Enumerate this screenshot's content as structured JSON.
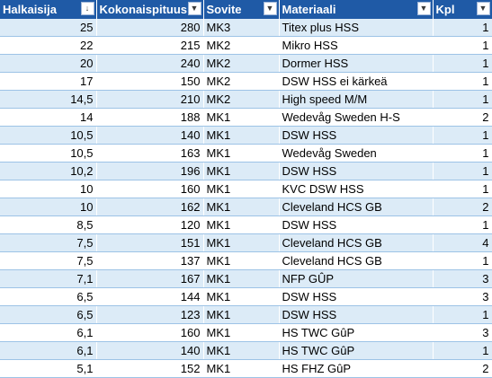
{
  "headers": [
    {
      "label": "Halkaisija",
      "filter_icon": "sort-descending-icon",
      "filter_glyph": "↓"
    },
    {
      "label": "Kokonaispituus",
      "filter_icon": "filter-dropdown-icon",
      "filter_glyph": "▼"
    },
    {
      "label": "Sovite",
      "filter_icon": "filter-dropdown-icon",
      "filter_glyph": "▼"
    },
    {
      "label": "Materiaali",
      "filter_icon": "filter-dropdown-icon",
      "filter_glyph": "▼"
    },
    {
      "label": "Kpl",
      "filter_icon": "filter-dropdown-icon",
      "filter_glyph": "▼"
    }
  ],
  "rows": [
    [
      "25",
      "280",
      "MK3",
      "Titex plus HSS",
      "1"
    ],
    [
      "22",
      "215",
      "MK2",
      "Mikro HSS",
      "1"
    ],
    [
      "20",
      "240",
      "MK2",
      "Dormer HSS",
      "1"
    ],
    [
      "17",
      "150",
      "MK2",
      "DSW HSS ei kärkeä",
      "1"
    ],
    [
      "14,5",
      "210",
      "MK2",
      "High speed M/M",
      "1"
    ],
    [
      "14",
      "188",
      "MK1",
      "Wedevåg Sweden H-S",
      "2"
    ],
    [
      "10,5",
      "140",
      "MK1",
      "DSW HSS",
      "1"
    ],
    [
      "10,5",
      "163",
      "MK1",
      "Wedevåg Sweden",
      "1"
    ],
    [
      "10,2",
      "196",
      "MK1",
      "DSW HSS",
      "1"
    ],
    [
      "10",
      "160",
      "MK1",
      "KVC DSW HSS",
      "1"
    ],
    [
      "10",
      "162",
      "MK1",
      "Cleveland HCS GB",
      "2"
    ],
    [
      "8,5",
      "120",
      "MK1",
      "DSW HSS",
      "1"
    ],
    [
      "7,5",
      "151",
      "MK1",
      "Cleveland HCS GB",
      "4"
    ],
    [
      "7,5",
      "137",
      "MK1",
      "Cleveland HCS GB",
      "1"
    ],
    [
      "7,1",
      "167",
      "MK1",
      "NFP GÛP",
      "3"
    ],
    [
      "6,5",
      "144",
      "MK1",
      "DSW HSS",
      "3"
    ],
    [
      "6,5",
      "123",
      "MK1",
      "DSW HSS",
      "1"
    ],
    [
      "6,1",
      "160",
      "MK1",
      "HS TWC GûP",
      "3"
    ],
    [
      "6,1",
      "140",
      "MK1",
      "HS TWC GûP",
      "1"
    ],
    [
      "5,1",
      "152",
      "MK1",
      "HS FHZ GûP",
      "2"
    ]
  ],
  "colors": {
    "header_bg": "#1f5aa6",
    "band_bg": "#dcebf7",
    "row_line": "#9dc3e6"
  }
}
